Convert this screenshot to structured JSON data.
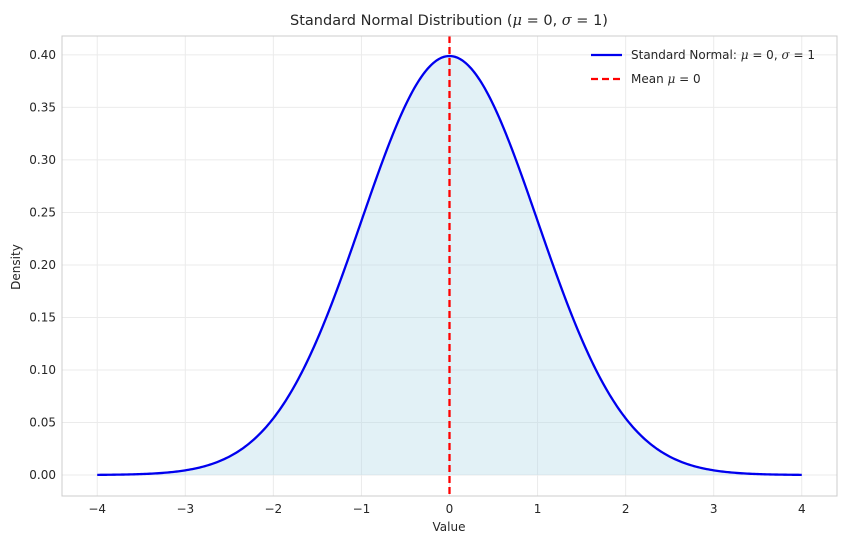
{
  "chart_data": {
    "type": "line",
    "title": {
      "prefix": "Standard Normal Distribution (",
      "mu": "μ",
      "mu_eq": " = 0,  ",
      "sigma": "σ",
      "sigma_eq": " = 1",
      "suffix": ")"
    },
    "xlabel": "Value",
    "ylabel": "Density",
    "xlim": [
      -4.4,
      4.4
    ],
    "ylim": [
      -0.02,
      0.418
    ],
    "x_ticks": [
      -4,
      -3,
      -2,
      -1,
      0,
      1,
      2,
      3,
      4
    ],
    "x_tick_labels": [
      "−4",
      "−3",
      "−2",
      "−1",
      "0",
      "1",
      "2",
      "3",
      "4"
    ],
    "y_ticks": [
      0.0,
      0.05,
      0.1,
      0.15,
      0.2,
      0.25,
      0.3,
      0.35,
      0.4
    ],
    "y_tick_labels": [
      "0.00",
      "0.05",
      "0.10",
      "0.15",
      "0.20",
      "0.25",
      "0.30",
      "0.35",
      "0.40"
    ],
    "grid": true,
    "legend_position": "top-right",
    "series": [
      {
        "kind": "density-curve",
        "color": "#0000ee",
        "fill_color": "#add8e6",
        "x": [
          -4.0,
          -3.5,
          -3.0,
          -2.5,
          -2.0,
          -1.75,
          -1.5,
          -1.25,
          -1.0,
          -0.75,
          -0.5,
          -0.25,
          0.0,
          0.25,
          0.5,
          0.75,
          1.0,
          1.25,
          1.5,
          1.75,
          2.0,
          2.5,
          3.0,
          3.5,
          4.0
        ],
        "y": [
          0.0001,
          0.0009,
          0.0044,
          0.0175,
          0.054,
          0.0863,
          0.1295,
          0.1826,
          0.242,
          0.3011,
          0.3521,
          0.3867,
          0.3989,
          0.3867,
          0.3521,
          0.3011,
          0.242,
          0.1826,
          0.1295,
          0.0863,
          0.054,
          0.0175,
          0.0044,
          0.0009,
          0.0001
        ],
        "legend": {
          "prefix": "Standard Normal: ",
          "mu": "μ",
          "mu_eq": " = 0,  ",
          "sigma": "σ",
          "sigma_eq": " = 1"
        }
      },
      {
        "kind": "vertical-line",
        "color": "#ff0000",
        "x_value": 0,
        "legend": {
          "prefix": "Mean ",
          "mu": "μ",
          "mu_eq": " = 0"
        }
      }
    ]
  }
}
